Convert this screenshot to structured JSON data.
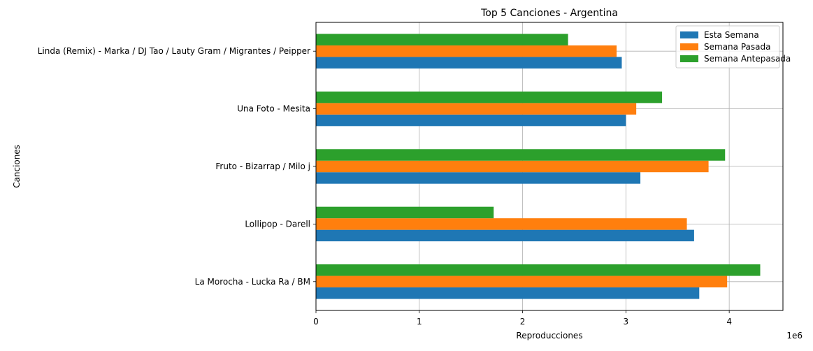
{
  "chart_data": {
    "type": "bar",
    "orientation": "horizontal",
    "title": "Top 5 Canciones - Argentina",
    "xlabel": "Reproducciones",
    "ylabel": "Canciones",
    "x_offset_label": "1e6",
    "xlim": [
      0,
      4.52
    ],
    "x_ticks": [
      0,
      1,
      2,
      3,
      4
    ],
    "x_tick_labels": [
      "0",
      "1",
      "2",
      "3",
      "4"
    ],
    "grid": true,
    "legend_position": "top-right",
    "categories": [
      "La Morocha - Lucka Ra / BM",
      "Lollipop - Darell",
      "Fruto - Bizarrap / Milo j",
      "Una Foto - Mesita",
      "Linda (Remix) - Marka / DJ Tao / Lauty Gram / Migrantes / Peipper"
    ],
    "series": [
      {
        "name": "Esta Semana",
        "color": "#1f77b4",
        "values": [
          3.71,
          3.66,
          3.14,
          3.0,
          2.96
        ]
      },
      {
        "name": "Semana Pasada",
        "color": "#ff7f0e",
        "values": [
          3.98,
          3.59,
          3.8,
          3.1,
          2.91
        ]
      },
      {
        "name": "Semana Antepasada",
        "color": "#2ca02c",
        "values": [
          4.3,
          1.72,
          3.96,
          3.35,
          2.44
        ]
      }
    ]
  }
}
